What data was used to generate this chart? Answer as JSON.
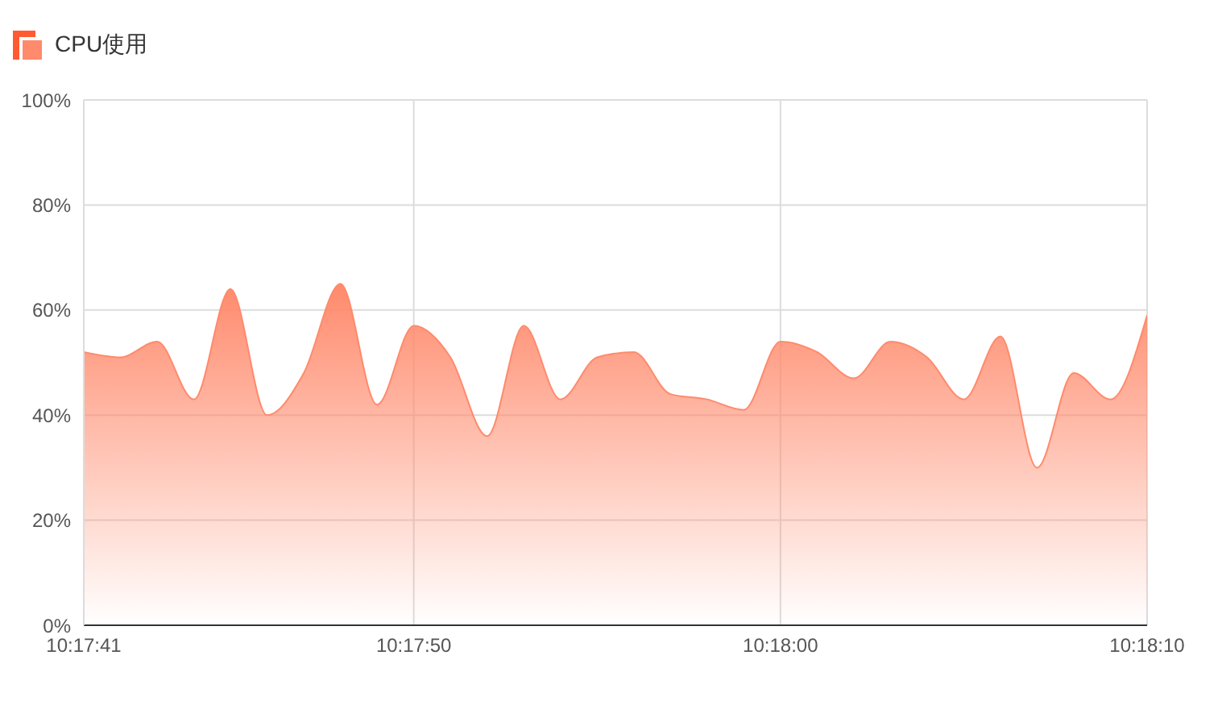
{
  "chart_data": {
    "type": "area",
    "title": "CPU使用",
    "x": [
      10.294722,
      10.295,
      10.295278,
      10.295556,
      10.295833,
      10.296111,
      10.296389,
      10.296667,
      10.296944,
      10.297222,
      10.2975,
      10.297778,
      10.298056,
      10.298333,
      10.298611,
      10.298889,
      10.299167,
      10.299444,
      10.299722,
      10.3,
      10.300278,
      10.300556,
      10.300833,
      10.301111,
      10.301389,
      10.301667,
      10.301944,
      10.302222,
      10.3025,
      10.302778
    ],
    "series": [
      {
        "color": "#ff8a6c",
        "values": [
          52,
          51,
          54,
          43,
          64,
          40,
          48,
          65,
          42,
          57,
          51,
          36,
          57,
          43,
          51,
          52,
          44,
          43,
          41,
          54,
          52,
          47,
          54,
          51,
          43,
          55,
          30,
          48,
          43,
          59
        ]
      }
    ],
    "xlim": [
      10.294722,
      10.302778
    ],
    "xticks": [
      {
        "value": 10.294722,
        "label": "10:17:41"
      },
      {
        "value": 10.297222,
        "label": "10:17:50"
      },
      {
        "value": 10.3,
        "label": "10:18:00"
      },
      {
        "value": 10.302778,
        "label": "10:18:10"
      }
    ],
    "ylim": [
      0,
      100
    ],
    "yticks": [
      {
        "value": 0,
        "label": "0%"
      },
      {
        "value": 20,
        "label": "20%"
      },
      {
        "value": 40,
        "label": "40%"
      },
      {
        "value": 60,
        "label": "60%"
      },
      {
        "value": 80,
        "label": "80%"
      },
      {
        "value": 100,
        "label": "100%"
      }
    ],
    "grid": true
  }
}
